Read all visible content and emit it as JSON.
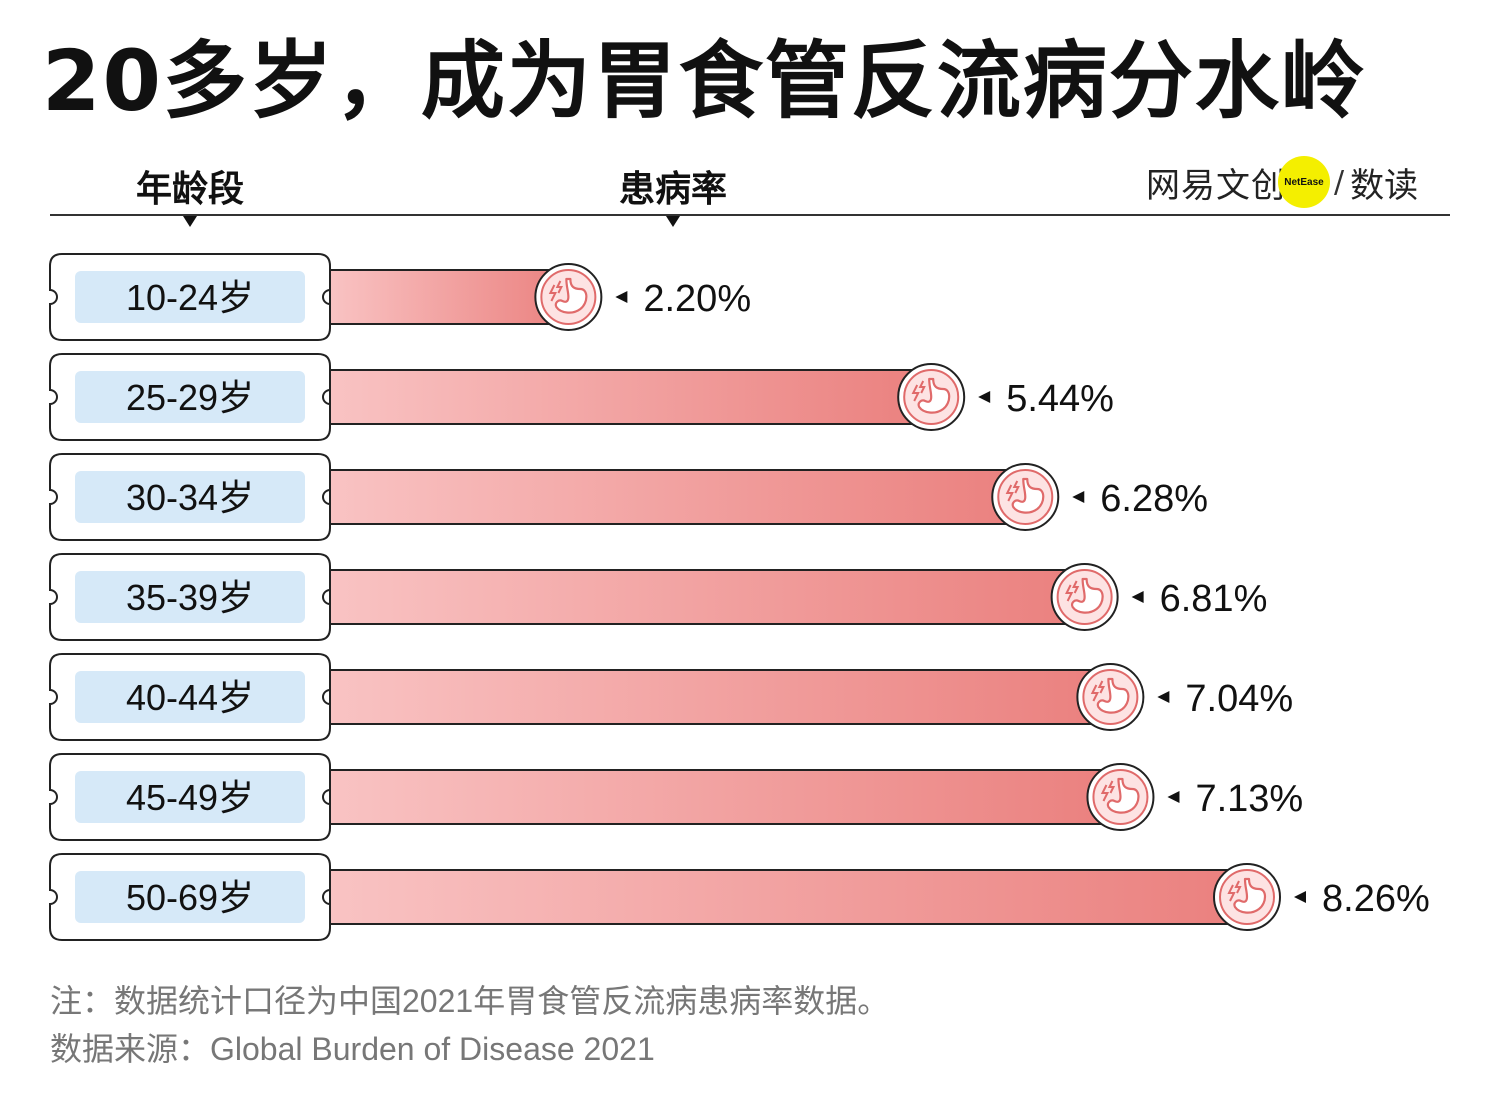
{
  "title": "20多岁，成为胃食管反流病分水岭",
  "header": {
    "age_column": "年龄段",
    "rate_column": "患病率"
  },
  "brand": {
    "name": "网易文创",
    "badge": "NetEase",
    "separator": "/",
    "sub": "数读"
  },
  "colors": {
    "bar_start": "#f9c3c3",
    "bar_end": "#ea7f7d",
    "label_fill": "#d6e9f8",
    "icon_stroke": "#e06a6a"
  },
  "icon": "stomach-icon",
  "chart_data": {
    "type": "bar",
    "orientation": "horizontal",
    "categories": [
      "10-24岁",
      "25-29岁",
      "30-34岁",
      "35-39岁",
      "40-44岁",
      "45-49岁",
      "50-69岁"
    ],
    "values": [
      2.2,
      5.44,
      6.28,
      6.81,
      7.04,
      7.13,
      8.26
    ],
    "value_labels": [
      "2.20%",
      "5.44%",
      "6.28%",
      "6.81%",
      "7.04%",
      "7.13%",
      "8.26%"
    ],
    "unit": "%"
  },
  "notes": {
    "note": "注：数据统计口径为中国2021年胃食管反流病患病率数据。",
    "source": "数据来源：Global Burden of Disease 2021"
  }
}
